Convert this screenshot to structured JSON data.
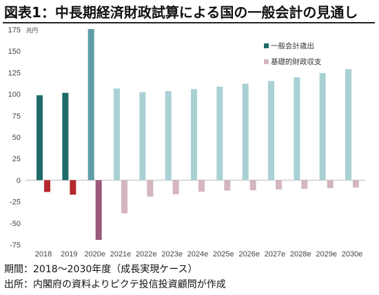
{
  "title": "図表1：中長期経済財政試算による国の一般会計の見通し",
  "footer": {
    "period": "期間：2018～2030年度（成長実現ケース）",
    "source": "出所：内閣府の資料よりピクテ投信投資顧問が作成"
  },
  "chart_data": {
    "type": "bar",
    "unit_label": "兆円",
    "categories": [
      "2018",
      "2019",
      "2020e",
      "2021e",
      "2022e",
      "2023e",
      "2024e",
      "2025e",
      "2026e",
      "2027e",
      "2028e",
      "2029e",
      "2030e"
    ],
    "ylim": [
      -75,
      175
    ],
    "yticks": [
      175,
      150,
      125,
      100,
      75,
      50,
      25,
      0,
      -25,
      -50,
      -75
    ],
    "grid": false,
    "legend_position": "top-right",
    "series": [
      {
        "name": "一般会計歳出",
        "values": [
          98.7,
          101.5,
          175.7,
          106.6,
          102.3,
          103.6,
          105.8,
          108.7,
          112.1,
          115.3,
          119.5,
          124.5,
          129.0
        ],
        "colors": [
          "#1f6b6b",
          "#1f6b6b",
          "#5f9ea6",
          "#a9d1d4",
          "#a9d1d4",
          "#a9d1d4",
          "#a9d1d4",
          "#a9d1d4",
          "#a9d1d4",
          "#a9d1d4",
          "#a9d1d4",
          "#a9d1d4",
          "#a9d1d4"
        ],
        "legend_color": "#1f6b6b"
      },
      {
        "name": "基礎的財政収支",
        "values": [
          -13.7,
          -16.8,
          -69.4,
          -38.6,
          -19.1,
          -16.4,
          -13.4,
          -12.1,
          -11.7,
          -10.7,
          -10.1,
          -9.3,
          -8.5
        ],
        "colors": [
          "#b3282d",
          "#b3282d",
          "#9b5a7b",
          "#d4b5c0",
          "#d4b5c0",
          "#d4b5c0",
          "#d4b5c0",
          "#d4b5c0",
          "#d4b5c0",
          "#d4b5c0",
          "#d4b5c0",
          "#d4b5c0",
          "#d4b5c0"
        ],
        "legend_color": "#d4b5c0"
      }
    ]
  }
}
